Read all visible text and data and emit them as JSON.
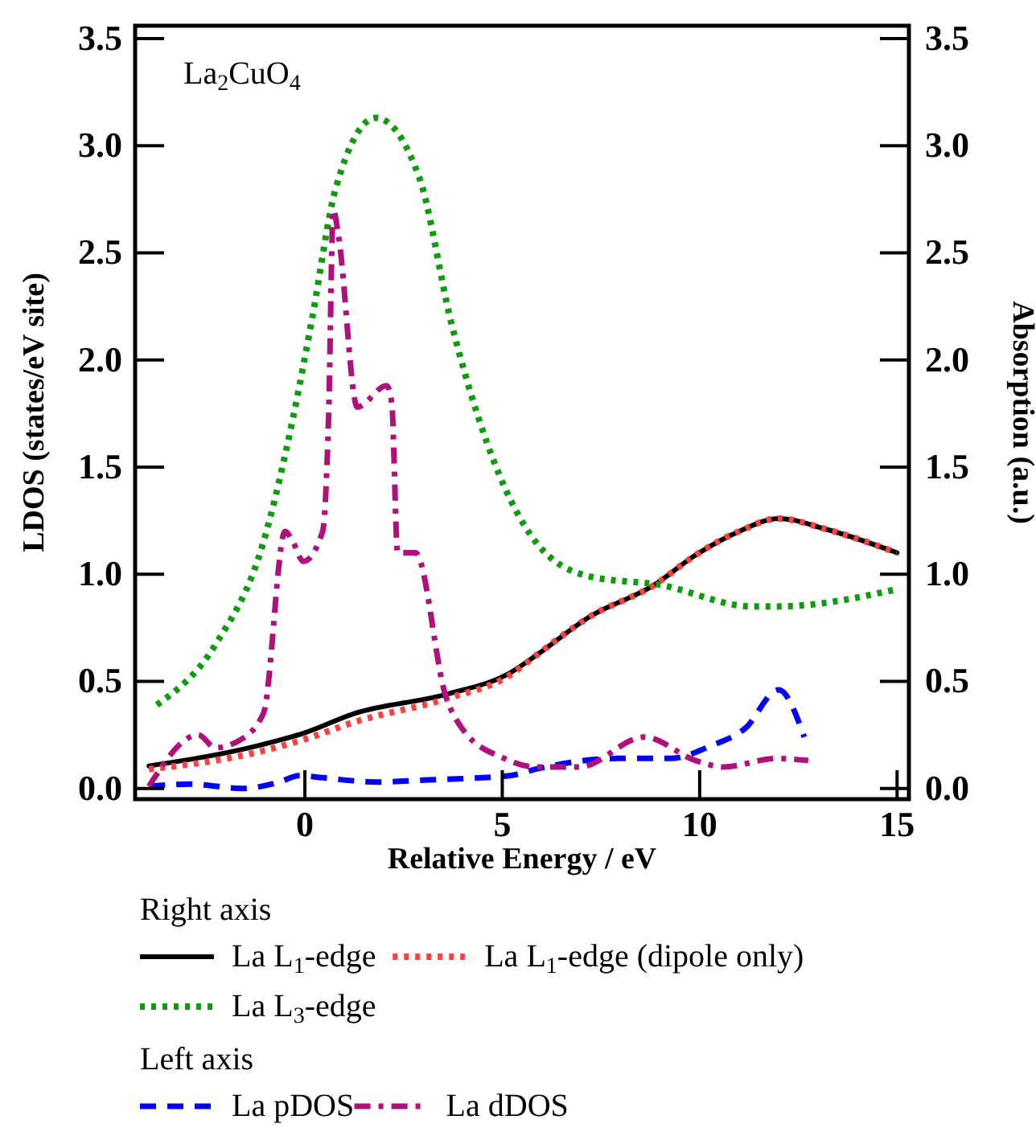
{
  "chart_data": {
    "type": "line",
    "title": "La$_{2}$CuO$_{4}$",
    "xlabel": "Relative Energy / eV",
    "ylabel": "LDOS (states/eV site)",
    "y2label": "Absorption (a.u.)",
    "annotations": [
      "Right axis",
      "Left axis"
    ],
    "xlim": [
      -4.3,
      15.3
    ],
    "xticks": [
      0,
      5,
      10,
      15
    ],
    "ylim": [
      -0.05,
      3.56
    ],
    "yticks": [
      {
        "value": 0,
        "label": "0.0"
      },
      {
        "value": 0.5,
        "label": "0.5"
      },
      {
        "value": 1,
        "label": "1.0"
      },
      {
        "value": 1.5,
        "label": "1.5"
      },
      {
        "value": 2,
        "label": "2.0"
      },
      {
        "value": 2.5,
        "label": "2.5"
      },
      {
        "value": 3,
        "label": "3.0"
      },
      {
        "value": 3.5,
        "label": "3.5"
      }
    ],
    "y2lim": [
      -0.05,
      3.56
    ],
    "y2ticks": [
      {
        "value": 0,
        "label": "0.0"
      },
      {
        "value": 0.5,
        "label": "0.5"
      },
      {
        "value": 1,
        "label": "1.0"
      },
      {
        "value": 1.5,
        "label": "1.5"
      },
      {
        "value": 2,
        "label": "2.0"
      },
      {
        "value": 2.5,
        "label": "2.5"
      },
      {
        "value": 3,
        "label": "3.0"
      },
      {
        "value": 3.5,
        "label": "3.5"
      }
    ],
    "grid": false,
    "legend": "bottom",
    "marker": "none",
    "series": [
      {
        "name": "La L$_{1}$-edge",
        "color": "#000000",
        "axis": "y2",
        "line_style": "solid",
        "x": [
          -3.95,
          -1.18,
          0,
          1.26,
          3.6,
          5.2,
          5.85,
          7.2,
          8.85,
          9.9,
          11,
          12,
          13.2,
          15
        ],
        "values": [
          0.105,
          0.2,
          0.26,
          0.35,
          0.44,
          0.54,
          0.62,
          0.8,
          0.95,
          1.09,
          1.2,
          1.26,
          1.21,
          1.1
        ]
      },
      {
        "name": "La L$_{1}$-edge (dipole only)",
        "color": "#ff4040",
        "axis": "y2",
        "line_style": "dotted",
        "x": [
          -3.95,
          -1.18,
          0,
          1.26,
          3.6,
          5.2,
          5.85,
          7.2,
          8.85,
          9.9,
          11,
          12,
          13.2,
          15
        ],
        "values": [
          0.09,
          0.17,
          0.23,
          0.31,
          0.42,
          0.53,
          0.62,
          0.8,
          0.95,
          1.09,
          1.2,
          1.26,
          1.21,
          1.1
        ]
      },
      {
        "name": "La L$_{3}$-edge",
        "color": "#109a10",
        "axis": "y2",
        "line_style": "dotted",
        "x": [
          -3.75,
          -2.27,
          -1.05,
          -0.3,
          0.17,
          0.78,
          1.8,
          2.9,
          3.7,
          4.6,
          5.85,
          7.2,
          9,
          11.3,
          12,
          15
        ],
        "values": [
          0.39,
          0.67,
          1.15,
          1.73,
          2.18,
          2.8,
          3.13,
          2.85,
          2.18,
          1.62,
          1.15,
          0.99,
          0.95,
          0.85,
          0.85,
          0.93
        ]
      },
      {
        "name": "La pDOS",
        "color": "#0000ff",
        "axis": "y",
        "line_style": "dashed",
        "x": [
          -3.95,
          -2.9,
          -1.6,
          -0.64,
          -0.15,
          0.45,
          1.8,
          3.15,
          5.2,
          5.85,
          7.9,
          9.25,
          10.3,
          11.15,
          12,
          12.65
        ],
        "values": [
          0.01,
          0.02,
          0,
          0.03,
          0.06,
          0.05,
          0.03,
          0.04,
          0.06,
          0.09,
          0.14,
          0.14,
          0.2,
          0.28,
          0.46,
          0.24
        ]
      },
      {
        "name": "La dDOS",
        "color": "#b0107a",
        "axis": "y",
        "line_style": "dashdot",
        "x": [
          -3.95,
          -2.7,
          -2.27,
          -1.7,
          -1.05,
          -0.5,
          -0.3,
          -0.04,
          0.45,
          0.6,
          0.72,
          0.85,
          1.33,
          2.07,
          2.2,
          2.35,
          2.8,
          3.57,
          3.98,
          5.05,
          5.85,
          6.95,
          8.6,
          9.9,
          10.6,
          11.95,
          12.75
        ],
        "values": [
          0.01,
          0.25,
          0.19,
          0.22,
          0.35,
          1.2,
          1.15,
          1.06,
          1.2,
          1.73,
          2.7,
          2.58,
          1.78,
          1.88,
          1.8,
          1.1,
          1.1,
          0.43,
          0.28,
          0.14,
          0.1,
          0.1,
          0.24,
          0.13,
          0.1,
          0.14,
          0.13
        ]
      }
    ]
  }
}
